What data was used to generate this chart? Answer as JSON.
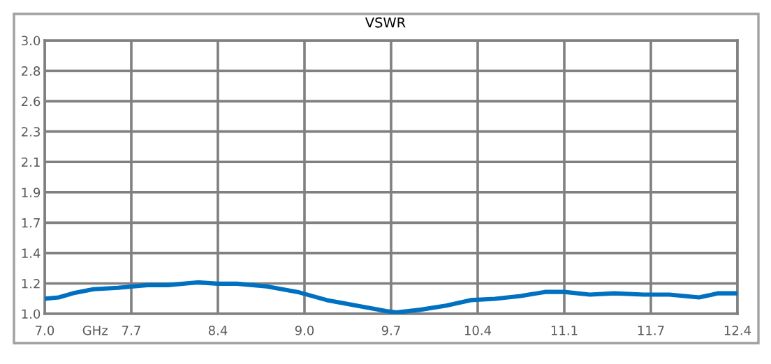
{
  "chart_data": {
    "type": "line",
    "title": "VSWR",
    "xlabel": "GHz",
    "x": [
      7.0,
      7.11,
      7.22,
      7.38,
      7.57,
      7.69,
      7.8,
      7.96,
      8.19,
      8.35,
      8.5,
      8.73,
      8.97,
      9.2,
      9.43,
      9.66,
      9.74,
      9.93,
      10.13,
      10.32,
      10.51,
      10.71,
      10.9,
      11.05,
      11.25,
      11.44,
      11.67,
      11.87,
      12.1,
      12.25,
      12.4
    ],
    "series": [
      {
        "color": "#0070c0",
        "values": [
          1.11,
          1.12,
          1.15,
          1.18,
          1.19,
          1.2,
          1.21,
          1.21,
          1.23,
          1.22,
          1.22,
          1.2,
          1.16,
          1.1,
          1.06,
          1.02,
          1.01,
          1.03,
          1.06,
          1.1,
          1.11,
          1.13,
          1.16,
          1.16,
          1.14,
          1.15,
          1.14,
          1.14,
          1.12,
          1.15,
          1.15
        ]
      }
    ],
    "xlim": [
      7.0,
      12.4
    ],
    "ylim": [
      1.0,
      3.0
    ],
    "xticks": [
      {
        "value": 7.0,
        "label": "7.0"
      },
      {
        "value": 7.675,
        "label": "7.7"
      },
      {
        "value": 8.35,
        "label": "8.4"
      },
      {
        "value": 9.025,
        "label": "9.0"
      },
      {
        "value": 9.7,
        "label": "9.7"
      },
      {
        "value": 10.375,
        "label": "10.4"
      },
      {
        "value": 11.05,
        "label": "11.1"
      },
      {
        "value": 11.725,
        "label": "11.7"
      },
      {
        "value": 12.4,
        "label": "12.4"
      }
    ],
    "yticks": [
      {
        "value": 1.0,
        "label": "1.0"
      },
      {
        "value": 1.2222,
        "label": "1.2"
      },
      {
        "value": 1.4444,
        "label": "1.4"
      },
      {
        "value": 1.6667,
        "label": "1.7"
      },
      {
        "value": 1.8889,
        "label": "1.9"
      },
      {
        "value": 2.1111,
        "label": "2.1"
      },
      {
        "value": 2.3333,
        "label": "2.3"
      },
      {
        "value": 2.5556,
        "label": "2.6"
      },
      {
        "value": 2.7778,
        "label": "2.8"
      },
      {
        "value": 3.0,
        "label": "3.0"
      }
    ],
    "grid": true,
    "legend": false,
    "marker": "none",
    "line_style": "solid"
  }
}
